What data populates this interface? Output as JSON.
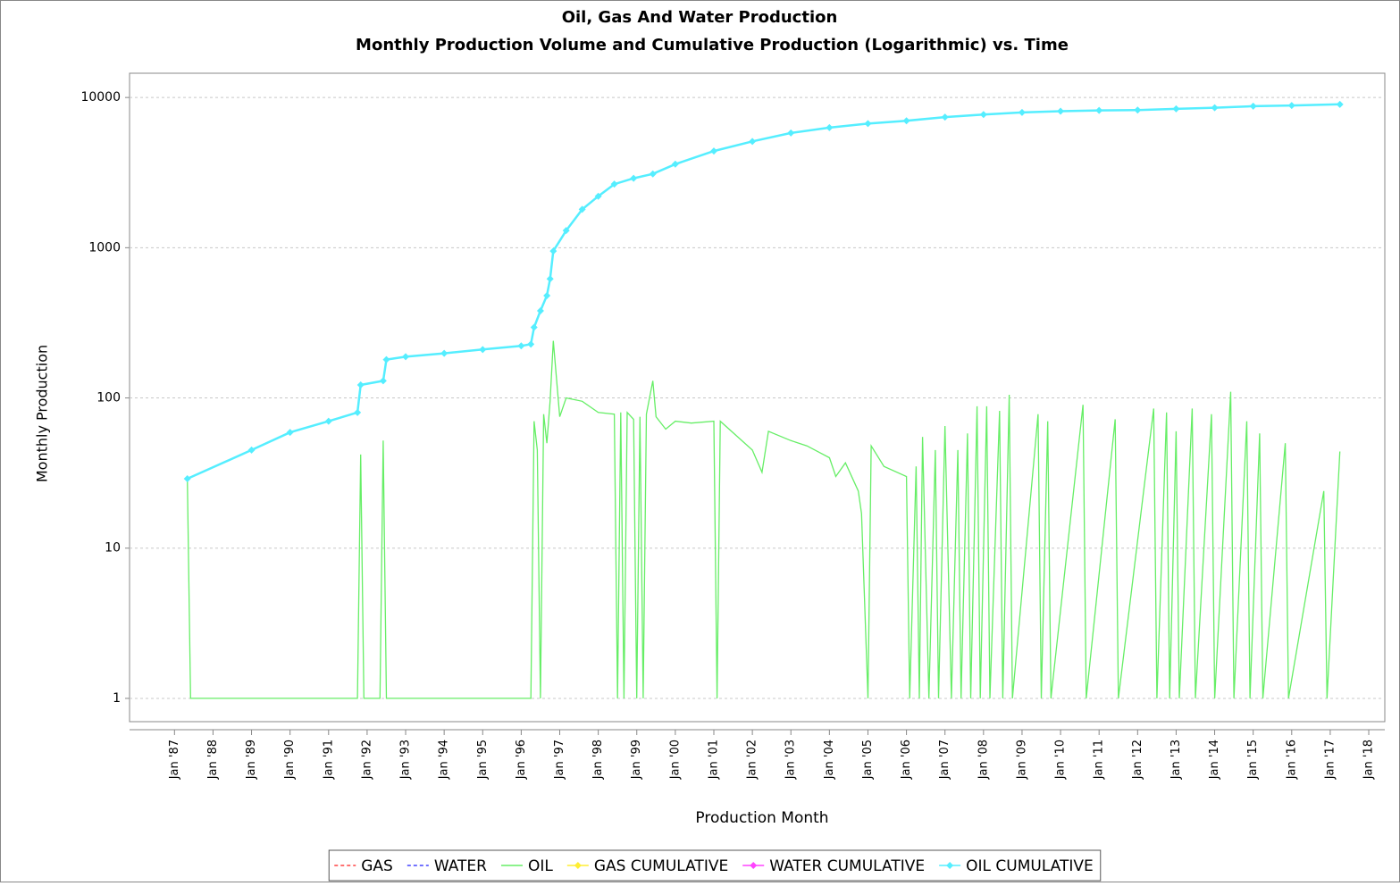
{
  "chart_data": {
    "type": "line",
    "title": "Oil, Gas And Water Production",
    "subtitle": "Monthly Production Volume and Cumulative Production (Logarithmic) vs. Time",
    "x_label": "Production Month",
    "y_label": "Monthly Production",
    "log_scale": true,
    "grid": true,
    "legend": "bottom",
    "ylim": [
      0.7,
      14500
    ],
    "yticks": [
      1,
      10,
      100,
      1000,
      10000
    ],
    "xlim": [
      "1985-11",
      "2018-06"
    ],
    "xticks": [
      {
        "value": "1987-01",
        "label": "Jan '87"
      },
      {
        "value": "1988-01",
        "label": "Jan '88"
      },
      {
        "value": "1989-01",
        "label": "Jan '89"
      },
      {
        "value": "1990-01",
        "label": "Jan '90"
      },
      {
        "value": "1991-01",
        "label": "Jan '91"
      },
      {
        "value": "1992-01",
        "label": "Jan '92"
      },
      {
        "value": "1993-01",
        "label": "Jan '93"
      },
      {
        "value": "1994-01",
        "label": "Jan '94"
      },
      {
        "value": "1995-01",
        "label": "Jan '95"
      },
      {
        "value": "1996-01",
        "label": "Jan '96"
      },
      {
        "value": "1997-01",
        "label": "Jan '97"
      },
      {
        "value": "1998-01",
        "label": "Jan '98"
      },
      {
        "value": "1999-01",
        "label": "Jan '99"
      },
      {
        "value": "2000-01",
        "label": "Jan '00"
      },
      {
        "value": "2001-01",
        "label": "Jan '01"
      },
      {
        "value": "2002-01",
        "label": "Jan '02"
      },
      {
        "value": "2003-01",
        "label": "Jan '03"
      },
      {
        "value": "2004-01",
        "label": "Jan '04"
      },
      {
        "value": "2005-01",
        "label": "Jan '05"
      },
      {
        "value": "2006-01",
        "label": "Jan '06"
      },
      {
        "value": "2007-01",
        "label": "Jan '07"
      },
      {
        "value": "2008-01",
        "label": "Jan '08"
      },
      {
        "value": "2009-01",
        "label": "Jan '09"
      },
      {
        "value": "2010-01",
        "label": "Jan '10"
      },
      {
        "value": "2011-01",
        "label": "Jan '11"
      },
      {
        "value": "2012-01",
        "label": "Jan '12"
      },
      {
        "value": "2013-01",
        "label": "Jan '13"
      },
      {
        "value": "2014-01",
        "label": "Jan '14"
      },
      {
        "value": "2015-01",
        "label": "Jan '15"
      },
      {
        "value": "2016-01",
        "label": "Jan '16"
      },
      {
        "value": "2017-01",
        "label": "Jan '17"
      },
      {
        "value": "2018-01",
        "label": "Jan '18"
      }
    ],
    "series": [
      {
        "name": "GAS",
        "color": "#ff4444",
        "dashed": true,
        "markers": false,
        "x": [],
        "values": []
      },
      {
        "name": "WATER",
        "color": "#4444ff",
        "dashed": true,
        "markers": false,
        "x": [],
        "values": []
      },
      {
        "name": "OIL",
        "color": "#66ee66",
        "dashed": false,
        "markers": false,
        "x": [
          "1987-05",
          "1987-06",
          "1991-10",
          "1991-11",
          "1991-12",
          "1992-05",
          "1992-06",
          "1992-07",
          "1996-04",
          "1996-05",
          "1996-06",
          "1996-07",
          "1996-08",
          "1996-09",
          "1996-10",
          "1996-11",
          "1997-01",
          "1997-03",
          "1997-08",
          "1998-01",
          "1998-06",
          "1998-07",
          "1998-08",
          "1998-09",
          "1998-10",
          "1998-12",
          "1999-01",
          "1999-02",
          "1999-03",
          "1999-04",
          "1999-06",
          "1999-07",
          "1999-10",
          "2000-01",
          "2000-06",
          "2001-01",
          "2001-02",
          "2001-03",
          "2002-01",
          "2002-04",
          "2002-06",
          "2003-01",
          "2003-06",
          "2004-01",
          "2004-03",
          "2004-06",
          "2004-10",
          "2004-11",
          "2005-01",
          "2005-02",
          "2005-06",
          "2006-01",
          "2006-02",
          "2006-04",
          "2006-05",
          "2006-06",
          "2006-08",
          "2006-10",
          "2006-11",
          "2007-01",
          "2007-03",
          "2007-05",
          "2007-06",
          "2007-08",
          "2007-09",
          "2007-11",
          "2007-12",
          "2008-02",
          "2008-03",
          "2008-06",
          "2008-07",
          "2008-09",
          "2008-10",
          "2009-06",
          "2009-07",
          "2009-09",
          "2009-10",
          "2010-08",
          "2010-09",
          "2011-06",
          "2011-07",
          "2012-06",
          "2012-07",
          "2012-10",
          "2012-11",
          "2013-01",
          "2013-02",
          "2013-06",
          "2013-07",
          "2013-12",
          "2014-01",
          "2014-06",
          "2014-07",
          "2014-11",
          "2014-12",
          "2015-03",
          "2015-04",
          "2015-11",
          "2015-12",
          "2016-11",
          "2016-12",
          "2017-04"
        ],
        "values": [
          29,
          1,
          1,
          42,
          1,
          1,
          52,
          1,
          1,
          70,
          45,
          1,
          78,
          50,
          95,
          240,
          75,
          100,
          95,
          80,
          78,
          1,
          80,
          1,
          80,
          72,
          1,
          75,
          1,
          78,
          130,
          75,
          62,
          70,
          68,
          70,
          1,
          70,
          45,
          32,
          60,
          52,
          48,
          40,
          30,
          37,
          24,
          17,
          1,
          48,
          35,
          30,
          1,
          35,
          1,
          55,
          1,
          45,
          1,
          65,
          1,
          45,
          1,
          58,
          1,
          88,
          1,
          88,
          1,
          82,
          1,
          105,
          1,
          78,
          1,
          70,
          1,
          90,
          1,
          72,
          1,
          85,
          1,
          80,
          1,
          60,
          1,
          85,
          1,
          78,
          1,
          110,
          1,
          70,
          1,
          58,
          1,
          50,
          1,
          24,
          1,
          44
        ]
      },
      {
        "name": "GAS CUMULATIVE",
        "color": "#ffee33",
        "dashed": false,
        "markers": true,
        "x": [],
        "values": []
      },
      {
        "name": "WATER CUMULATIVE",
        "color": "#ff44ff",
        "dashed": false,
        "markers": true,
        "x": [],
        "values": []
      },
      {
        "name": "OIL CUMULATIVE",
        "color": "#55eeff",
        "dashed": false,
        "markers": true,
        "x": [
          "1987-05",
          "1989-01",
          "1990-01",
          "1991-01",
          "1991-10",
          "1991-11",
          "1992-06",
          "1992-07",
          "1993-01",
          "1994-01",
          "1995-01",
          "1996-01",
          "1996-04",
          "1996-05",
          "1996-07",
          "1996-09",
          "1996-10",
          "1996-11",
          "1997-03",
          "1997-08",
          "1998-01",
          "1998-06",
          "1998-12",
          "1999-06",
          "2000-01",
          "2001-01",
          "2002-01",
          "2003-01",
          "2004-01",
          "2005-01",
          "2006-01",
          "2007-01",
          "2008-01",
          "2009-01",
          "2010-01",
          "2011-01",
          "2012-01",
          "2013-01",
          "2014-01",
          "2015-01",
          "2016-01",
          "2017-04"
        ],
        "values": [
          29,
          45,
          59,
          70,
          80,
          122,
          130,
          180,
          188,
          198,
          210,
          222,
          228,
          295,
          380,
          480,
          620,
          950,
          1300,
          1800,
          2200,
          2650,
          2900,
          3100,
          3600,
          4400,
          5100,
          5800,
          6300,
          6700,
          7000,
          7400,
          7700,
          7950,
          8100,
          8200,
          8250,
          8400,
          8550,
          8750,
          8850,
          9000
        ]
      }
    ]
  }
}
